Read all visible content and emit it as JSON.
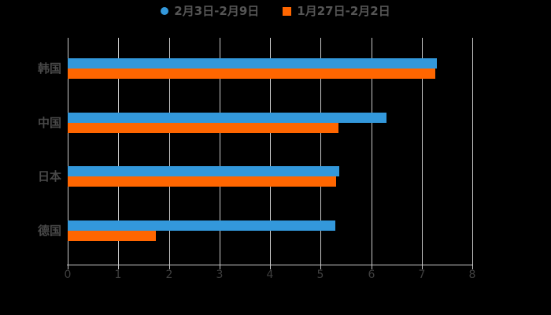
{
  "style": {
    "background": "#000000",
    "grid_color": "#c9c9c9",
    "axis_color": "#c9c9c9",
    "tick_text_color": "#3f3f3f",
    "category_text_color": "#484848",
    "legend_text_color": "#555555"
  },
  "chart_data": {
    "type": "bar",
    "orientation": "horizontal",
    "title": "",
    "xlabel": "",
    "ylabel": "",
    "grid": true,
    "legend_position": "top",
    "xlim": [
      0,
      8
    ],
    "xticks": [
      "0",
      "1",
      "2",
      "3",
      "4",
      "5",
      "6",
      "7",
      "8"
    ],
    "categories": [
      {
        "label": "韩国",
        "slug": "korea"
      },
      {
        "label": "中国",
        "slug": "china"
      },
      {
        "label": "日本",
        "slug": "japan"
      },
      {
        "label": "德国",
        "slug": "germany"
      }
    ],
    "series": [
      {
        "name": "2月3日-2月9日",
        "slug": "feb3-feb9",
        "color": "#3398db",
        "marker": "circle",
        "values": [
          7.3,
          6.3,
          5.37,
          5.29
        ]
      },
      {
        "name": "1月27日-2月2日",
        "slug": "jan27-feb2",
        "color": "#ff6600",
        "marker": "square",
        "values": [
          7.26,
          5.36,
          5.3,
          1.74
        ]
      }
    ]
  }
}
